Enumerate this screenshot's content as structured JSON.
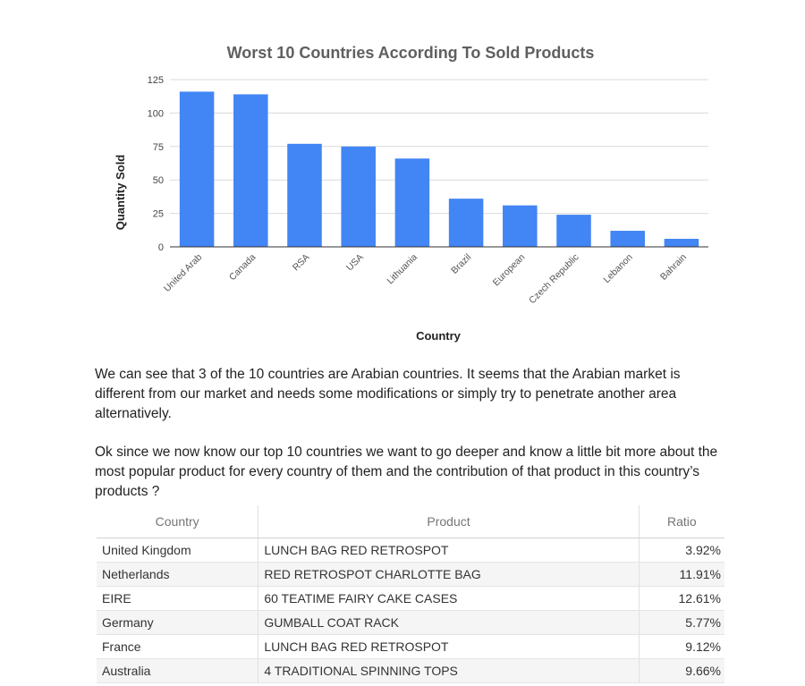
{
  "chart_data": {
    "type": "bar",
    "title": "Worst 10 Countries According To Sold Products",
    "xlabel": "Country",
    "ylabel": "Quantity Sold",
    "ylim": [
      0,
      125
    ],
    "yticks": [
      0,
      25,
      50,
      75,
      100,
      125
    ],
    "categories": [
      "United Arab",
      "Canada",
      "RSA",
      "USA",
      "Lithuania",
      "Brazil",
      "European",
      "Czech Republic",
      "Lebanon",
      "Bahrain"
    ],
    "values": [
      116,
      114,
      77,
      75,
      66,
      36,
      31,
      24,
      12,
      6
    ],
    "grid": true,
    "bar_color": "#4285f4"
  },
  "paragraphs": [
    "We can see that 3 of the 10 countries  are Arabian countries. It seems that the Arabian market is different from our market and needs some modifications or simply try to penetrate another area alternatively.",
    "Ok since we now know our top 10 countries we want to go deeper and know a little bit more about the most popular product for every country of them and the contribution of that product in this country’s products ?"
  ],
  "table": {
    "headers": [
      "Country",
      "Product",
      "Ratio"
    ],
    "rows": [
      [
        "United Kingdom",
        "LUNCH BAG RED RETROSPOT",
        "3.92%"
      ],
      [
        "Netherlands",
        "RED RETROSPOT CHARLOTTE BAG",
        "11.91%"
      ],
      [
        "EIRE",
        "60 TEATIME FAIRY CAKE CASES",
        "12.61%"
      ],
      [
        "Germany",
        "GUMBALL COAT RACK",
        "5.77%"
      ],
      [
        "France",
        "LUNCH BAG RED RETROSPOT",
        "9.12%"
      ],
      [
        "Australia",
        "4 TRADITIONAL SPINNING TOPS",
        "9.66%"
      ]
    ]
  }
}
